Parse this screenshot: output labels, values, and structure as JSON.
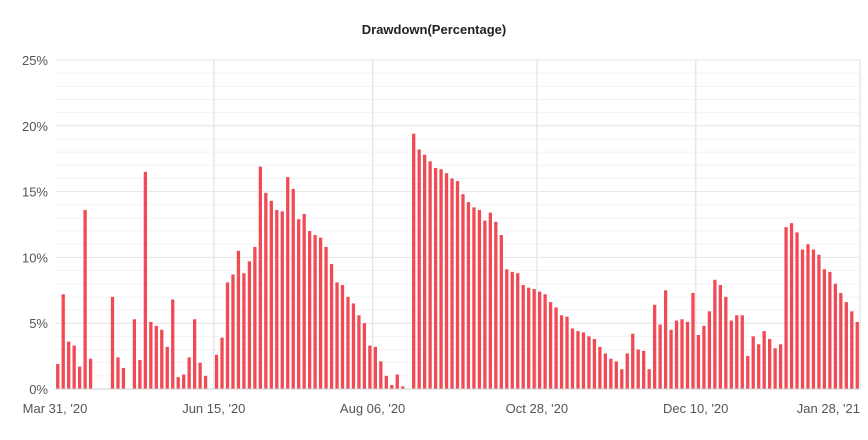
{
  "chart_data": {
    "type": "bar",
    "title": "Drawdown(Percentage)",
    "xlabel": "",
    "ylabel": "",
    "ylim": [
      0,
      25
    ],
    "y_ticks": [
      "0%",
      "5%",
      "10%",
      "15%",
      "20%",
      "25%"
    ],
    "x_tick_labels": [
      "Mar 31, '20",
      "Jun 15, '20",
      "Aug 06, '20",
      "Oct 28, '20",
      "Dec 10, '20",
      "Jan 28, '21"
    ],
    "grid": true,
    "legend": "none",
    "bar_color": "#f04a55",
    "values": [
      1.9,
      7.2,
      3.6,
      3.3,
      1.7,
      13.6,
      2.3,
      0,
      0,
      0,
      7.0,
      2.4,
      1.6,
      0,
      5.3,
      2.2,
      16.5,
      5.1,
      4.8,
      4.5,
      3.2,
      6.8,
      0.9,
      1.1,
      2.4,
      5.3,
      2.0,
      1.0,
      0,
      2.6,
      3.9,
      8.1,
      8.7,
      10.5,
      8.8,
      9.7,
      10.8,
      16.9,
      14.9,
      14.3,
      13.6,
      13.5,
      16.1,
      15.2,
      12.9,
      13.3,
      12.0,
      11.7,
      11.5,
      10.8,
      9.5,
      8.1,
      7.9,
      7.0,
      6.5,
      5.6,
      5.0,
      3.3,
      3.2,
      2.1,
      1.0,
      0.3,
      1.1,
      0.2,
      0,
      19.4,
      18.2,
      17.8,
      17.3,
      16.8,
      16.7,
      16.4,
      16.0,
      15.8,
      14.8,
      14.2,
      13.8,
      13.6,
      12.8,
      13.4,
      12.7,
      11.7,
      9.1,
      8.9,
      8.8,
      7.9,
      7.7,
      7.6,
      7.4,
      7.2,
      6.6,
      6.2,
      5.6,
      5.5,
      4.6,
      4.4,
      4.3,
      4.0,
      3.8,
      3.2,
      2.7,
      2.3,
      2.1,
      1.5,
      2.7,
      4.2,
      3.0,
      2.9,
      1.5,
      6.4,
      4.9,
      7.5,
      4.5,
      5.2,
      5.3,
      5.1,
      7.3,
      4.1,
      4.8,
      5.9,
      8.3,
      7.9,
      7.0,
      5.2,
      5.6,
      5.6,
      2.5,
      4.0,
      3.4,
      4.4,
      3.8,
      3.1,
      3.4,
      12.3,
      12.6,
      11.9,
      10.6,
      11.0,
      10.6,
      10.2,
      9.1,
      8.9,
      8.0,
      7.3,
      6.6,
      5.9,
      5.1
    ]
  }
}
